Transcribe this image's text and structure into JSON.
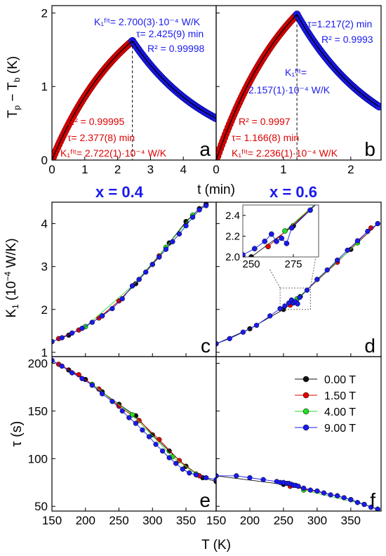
{
  "colors": {
    "red": "#dd0000",
    "blue": "#1a1aee",
    "green": "#22dd22",
    "black": "#111111",
    "fit": "#000000"
  },
  "labels": {
    "ylabel_top": "T_p − T_b (K)",
    "xlabel_top": "t (min)",
    "ylabel_mid": "K_1 (10^-4 W/K)",
    "ylabel_bot": "τ (s)",
    "xlabel_bot": "T (K)",
    "x04": "x = 0.4",
    "x06": "x = 0.6"
  },
  "chart_data": [
    {
      "panel": "a",
      "type": "scatter",
      "xlabel": "t (min)",
      "ylabel": "Tp - Tb (K)",
      "xlim": [
        0,
        5
      ],
      "ylim": [
        0,
        2.1
      ],
      "xticks": [
        0,
        1,
        2,
        3,
        4
      ],
      "yticks": [
        0,
        1,
        2
      ],
      "heating": {
        "t_start": 0,
        "t_end": 2.45,
        "peak": 1.62,
        "tau_min": 2.377,
        "color": "red"
      },
      "cooling": {
        "t_start": 2.45,
        "t_end": 5.0,
        "tau_min": 2.425,
        "color": "blue"
      },
      "annotations": {
        "cool_K": "K₁ᶠⁱᵗ= 2.700(3)·10⁻⁴ W/K",
        "cool_tau": "τ= 2.425(9) min",
        "cool_R2": "R² = 0.99998",
        "heat_R2": "R² = 0.99995",
        "heat_tau": "τ= 2.377(8) min",
        "heat_K": "K₁ᶠⁱᵗ= 2.722(1)·10⁻⁴ W/K"
      }
    },
    {
      "panel": "b",
      "type": "scatter",
      "xlabel": "t (min)",
      "xlim": [
        0,
        2.45
      ],
      "ylim": [
        0,
        2.1
      ],
      "xticks": [
        0,
        1,
        2
      ],
      "yticks": [
        0,
        1,
        2
      ],
      "heating": {
        "t_start": 0,
        "t_end": 1.2,
        "peak": 1.98,
        "tau_min": 1.166,
        "color": "red"
      },
      "cooling": {
        "t_start": 1.2,
        "t_end": 2.42,
        "tau_min": 1.217,
        "color": "blue"
      },
      "annotations": {
        "cool_tau": "τ=1.217(2) min",
        "cool_R2": "R² = 0.9993",
        "cool_K1": "K₁ᶠⁱᵗ=",
        "cool_K2": "2.157(1)·10⁻⁴ W/K",
        "heat_R2": "R² = 0.9997",
        "heat_tau": "τ= 1.166(8) min",
        "heat_K": "K₁ᶠⁱᵗ= 2.236(1)·10⁻⁴ W/K"
      }
    },
    {
      "panel": "c",
      "type": "line",
      "xlim": [
        150,
        395
      ],
      "ylim": [
        0.9,
        4.5
      ],
      "yticks": [
        1,
        2,
        3,
        4
      ],
      "series": [
        {
          "name": "0.00 T",
          "x": [
            150,
            175,
            200,
            225,
            250,
            275,
            300,
            325,
            350,
            370,
            380
          ],
          "y": [
            1.25,
            1.4,
            1.6,
            1.85,
            2.2,
            2.6,
            3.05,
            3.55,
            4.05,
            4.35,
            4.45
          ]
        },
        {
          "name": "1.50 T",
          "x": [
            160,
            190,
            220,
            250,
            280,
            310
          ],
          "y": [
            1.32,
            1.52,
            1.8,
            2.2,
            2.7,
            3.25
          ]
        },
        {
          "name": "4.00 T",
          "x": [
            200,
            270,
            320,
            360
          ],
          "y": [
            1.6,
            2.55,
            3.45,
            4.2
          ]
        },
        {
          "name": "9.00 T",
          "x": [
            150,
            165,
            180,
            195,
            210,
            225,
            240,
            255,
            270,
            280,
            290,
            300,
            310,
            320,
            330,
            340,
            350,
            360,
            370,
            380
          ],
          "y": [
            1.25,
            1.34,
            1.45,
            1.56,
            1.7,
            1.85,
            2.02,
            2.25,
            2.55,
            2.7,
            2.87,
            3.05,
            3.22,
            3.4,
            3.58,
            3.76,
            3.95,
            4.15,
            4.32,
            4.42
          ]
        }
      ]
    },
    {
      "panel": "d",
      "type": "line",
      "xlim": [
        150,
        395
      ],
      "ylim": [
        0.9,
        4.5
      ],
      "series": [
        {
          "name": "0.00 T",
          "x": [
            150,
            200,
            250,
            275,
            300,
            350,
            390
          ],
          "y": [
            1.2,
            1.55,
            2.0,
            2.3,
            2.7,
            3.4,
            4.0
          ]
        },
        {
          "name": "1.50 T",
          "x": [
            260,
            330,
            380
          ],
          "y": [
            2.1,
            3.1,
            3.9
          ]
        },
        {
          "name": "4.00 T",
          "x": [
            270,
            360
          ],
          "y": [
            2.25,
            3.55
          ]
        },
        {
          "name": "9.00 T",
          "x": [
            150,
            170,
            190,
            210,
            230,
            245,
            252,
            258,
            262,
            265,
            268,
            271,
            274,
            285,
            300,
            315,
            330,
            345,
            360,
            375,
            390
          ],
          "y": [
            1.2,
            1.32,
            1.47,
            1.63,
            1.85,
            2.02,
            2.08,
            2.15,
            2.22,
            2.15,
            2.18,
            2.13,
            2.28,
            2.45,
            2.7,
            2.92,
            3.15,
            3.38,
            3.6,
            3.82,
            4.0
          ]
        }
      ],
      "inset": {
        "xlim": [
          245,
          290
        ],
        "ylim": [
          2.0,
          2.5
        ],
        "xticks": [
          250,
          275
        ],
        "yticks": [
          2.0,
          2.2,
          2.4
        ]
      }
    },
    {
      "panel": "e",
      "type": "line",
      "xlim": [
        150,
        395
      ],
      "ylim": [
        45,
        207
      ],
      "yticks": [
        50,
        100,
        150,
        200
      ],
      "xticks": [
        150,
        200,
        250,
        300,
        350
      ],
      "series": [
        {
          "name": "0.00 T",
          "x": [
            150,
            175,
            200,
            225,
            250,
            275,
            300,
            325,
            350,
            375,
            395
          ],
          "y": [
            203,
            193,
            183,
            170,
            157,
            145,
            125,
            108,
            92,
            80,
            76
          ]
        },
        {
          "name": "1.50 T",
          "x": [
            160,
            190,
            220,
            250,
            280,
            310,
            340,
            370
          ],
          "y": [
            199,
            188,
            173,
            155,
            140,
            120,
            98,
            82
          ]
        },
        {
          "name": "4.00 T",
          "x": [
            210,
            270,
            330,
            365
          ],
          "y": [
            178,
            146,
            102,
            84
          ]
        },
        {
          "name": "9.00 T",
          "x": [
            150,
            165,
            180,
            195,
            210,
            225,
            240,
            255,
            265,
            275,
            285,
            295,
            305,
            315,
            325,
            335,
            345,
            355,
            365,
            380,
            395
          ],
          "y": [
            203,
            197,
            190,
            184,
            177,
            168,
            160,
            150,
            143,
            137,
            130,
            123,
            115,
            108,
            101,
            95,
            89,
            85,
            83,
            80,
            78
          ]
        }
      ]
    },
    {
      "panel": "f",
      "type": "line",
      "xlim": [
        150,
        395
      ],
      "ylim": [
        45,
        207
      ],
      "xticks": [
        150,
        200,
        250,
        300,
        350
      ],
      "legend": [
        "0.00 T",
        "1.50 T",
        "4.00 T",
        "9.00 T"
      ],
      "series": [
        {
          "name": "0.00 T",
          "x": [
            150,
            250,
            300,
            350,
            390
          ],
          "y": [
            82,
            73,
            66,
            57,
            47
          ]
        },
        {
          "name": "1.50 T",
          "x": [
            260,
            330
          ],
          "y": [
            71,
            61
          ]
        },
        {
          "name": "4.00 T",
          "x": [
            280,
            370
          ],
          "y": [
            67,
            52
          ]
        },
        {
          "name": "9.00 T",
          "x": [
            150,
            180,
            200,
            220,
            240,
            245,
            250,
            255,
            258,
            262,
            265,
            268,
            272,
            280,
            290,
            300,
            310,
            320,
            330,
            340,
            350,
            360,
            370,
            380,
            390
          ],
          "y": [
            82,
            82,
            80,
            78,
            76,
            75,
            75,
            74,
            74,
            73,
            72,
            72,
            71,
            69,
            67,
            66,
            64,
            62,
            61,
            59,
            57,
            54,
            52,
            49,
            47
          ]
        }
      ]
    }
  ]
}
